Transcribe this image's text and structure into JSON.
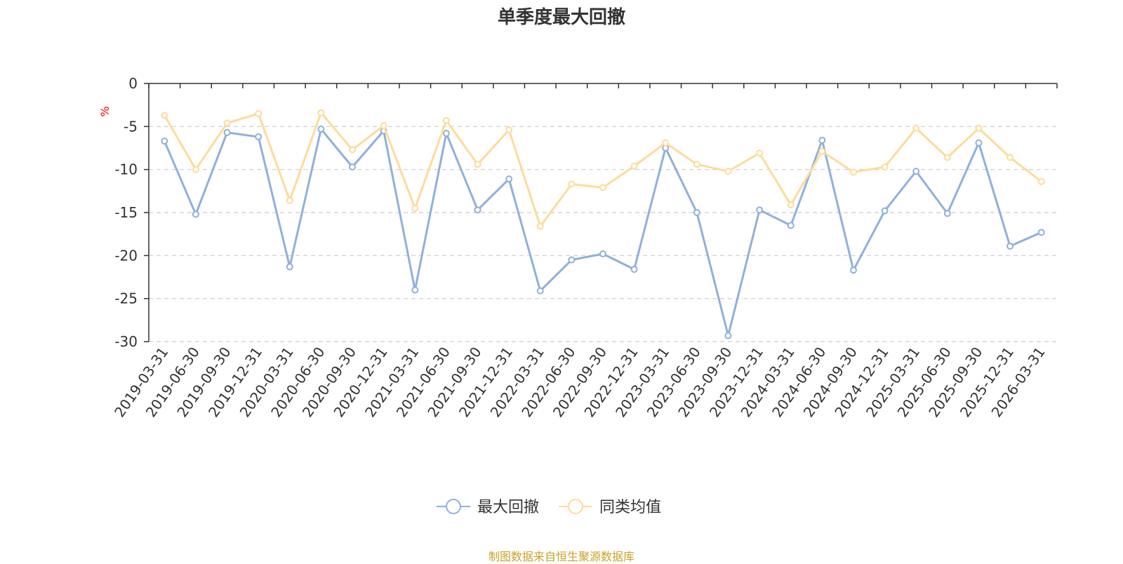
{
  "chart_data": {
    "type": "line",
    "title": "单季度最大回撤",
    "ylabel": "%",
    "xlabel": "",
    "ylim": [
      -30,
      0
    ],
    "yticks": [
      0,
      -5,
      -10,
      -15,
      -20,
      -25,
      -30
    ],
    "grid": true,
    "legend_position": "bottom-center",
    "categories": [
      "2019-03-31",
      "2019-06-30",
      "2019-09-30",
      "2019-12-31",
      "2020-03-31",
      "2020-06-30",
      "2020-09-30",
      "2020-12-31",
      "2021-03-31",
      "2021-06-30",
      "2021-09-30",
      "2021-12-31",
      "2022-03-31",
      "2022-06-30",
      "2022-09-30",
      "2022-12-31",
      "2023-03-31",
      "2023-06-30",
      "2023-09-30",
      "2023-12-31",
      "2024-03-31",
      "2024-06-30",
      "2024-09-30",
      "2024-12-31",
      "2025-03-31",
      "2025-06-30",
      "2025-09-30",
      "2025-12-31",
      "2026-03-31"
    ],
    "series": [
      {
        "name": "最大回撤",
        "color": "#8fb0dc",
        "values": [
          -6.7,
          -15.2,
          -5.7,
          -6.2,
          -21.3,
          -5.3,
          -9.7,
          -5.5,
          -24.0,
          -5.8,
          -14.7,
          -11.1,
          -24.1,
          -20.5,
          -19.8,
          -21.6,
          -7.5,
          -15.0,
          -29.3,
          -14.7,
          -16.5,
          -6.6,
          -21.7,
          -14.8,
          -10.2,
          -15.1,
          -6.9,
          -18.9,
          -17.3
        ]
      },
      {
        "name": "同类均值",
        "color": "#fddb9b",
        "values": [
          -3.7,
          -10.0,
          -4.6,
          -3.5,
          -13.6,
          -3.4,
          -7.7,
          -4.9,
          -14.5,
          -4.3,
          -9.4,
          -5.4,
          -16.6,
          -11.7,
          -12.1,
          -9.6,
          -6.9,
          -9.4,
          -10.2,
          -8.1,
          -14.1,
          -7.9,
          -10.3,
          -9.7,
          -5.2,
          -8.6,
          -5.2,
          -8.6,
          -11.4
        ]
      }
    ]
  },
  "source_note": "制图数据来自恒生聚源数据库",
  "colors": {
    "title": "#333333",
    "axis": "#333333",
    "grid": "#cccccc",
    "ylabel": "#ff0000",
    "source_note": "#c9a227"
  }
}
